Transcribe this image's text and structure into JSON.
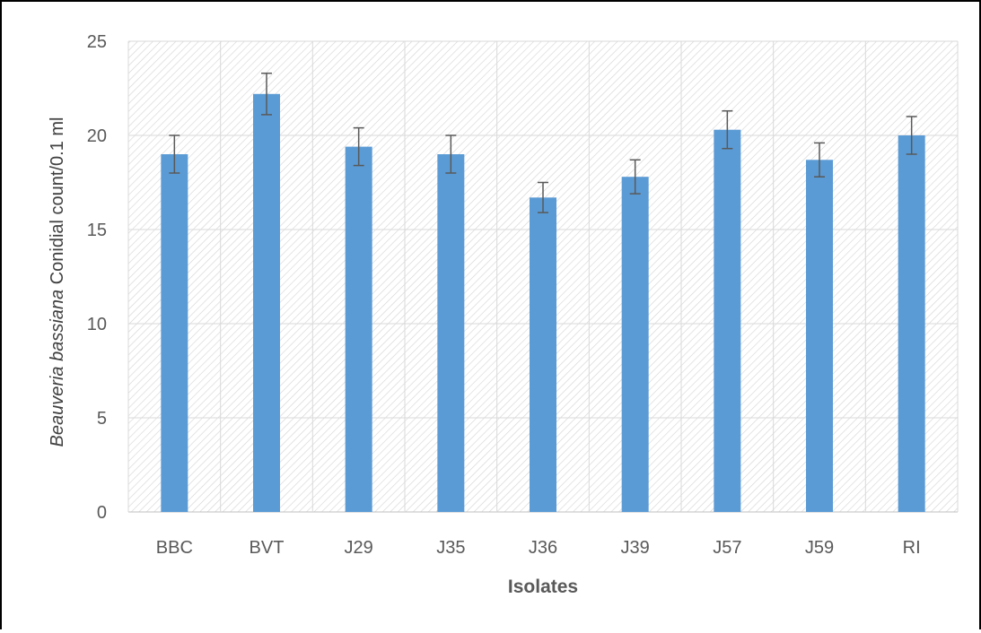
{
  "chart_data": {
    "type": "bar",
    "categories": [
      "BBC",
      "BVT",
      "J29",
      "J35",
      "J36",
      "J39",
      "J57",
      "J59",
      "RI"
    ],
    "values": [
      19.0,
      22.2,
      19.4,
      19.0,
      16.7,
      17.8,
      20.3,
      18.7,
      20.0
    ],
    "error": [
      1.0,
      1.1,
      1.0,
      1.0,
      0.8,
      0.9,
      1.0,
      0.9,
      1.0
    ],
    "title": "",
    "xlabel": "Isolates",
    "ylabel_italic": "Beauveria bassiana",
    "ylabel_rest": " Conidial count/0.1 ml",
    "ylim": [
      0,
      25
    ],
    "yticks": [
      0,
      5,
      10,
      15,
      20,
      25
    ],
    "grid": true,
    "legend": "none",
    "colors": {
      "bar": "#5b9bd5",
      "error": "#595959",
      "grid": "#d9d9d9",
      "hatch": "#d6d6d6"
    }
  }
}
